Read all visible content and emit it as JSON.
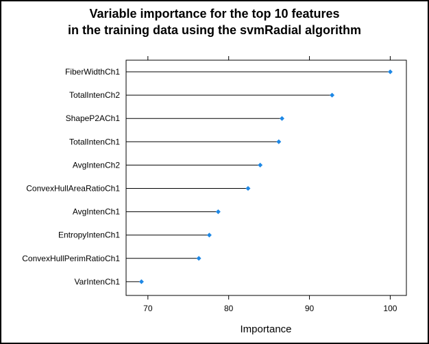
{
  "chart_data": {
    "type": "dot",
    "title_lines": [
      "Variable importance for the top 10 features",
      "in the training data using the svmRadial algorithm"
    ],
    "xlabel": "Importance",
    "ylabel": "",
    "xlim": [
      67.3,
      102.0
    ],
    "xticks": [
      70,
      80,
      90,
      100
    ],
    "xtick_labels": [
      "70",
      "80",
      "90",
      "100"
    ],
    "categories": [
      "FiberWidthCh1",
      "TotalIntenCh2",
      "ShapeP2ACh1",
      "TotalIntenCh1",
      "AvgIntenCh2",
      "ConvexHullAreaRatioCh1",
      "AvgIntenCh1",
      "EntropyIntenCh1",
      "ConvexHullPerimRatioCh1",
      "VarIntenCh1"
    ],
    "values": [
      100.0,
      92.8,
      86.6,
      86.2,
      83.9,
      82.4,
      78.7,
      77.6,
      76.3,
      69.2
    ],
    "marker_color": "#1e88e5",
    "line_color": "#000000",
    "grid": false,
    "legend": "none"
  }
}
